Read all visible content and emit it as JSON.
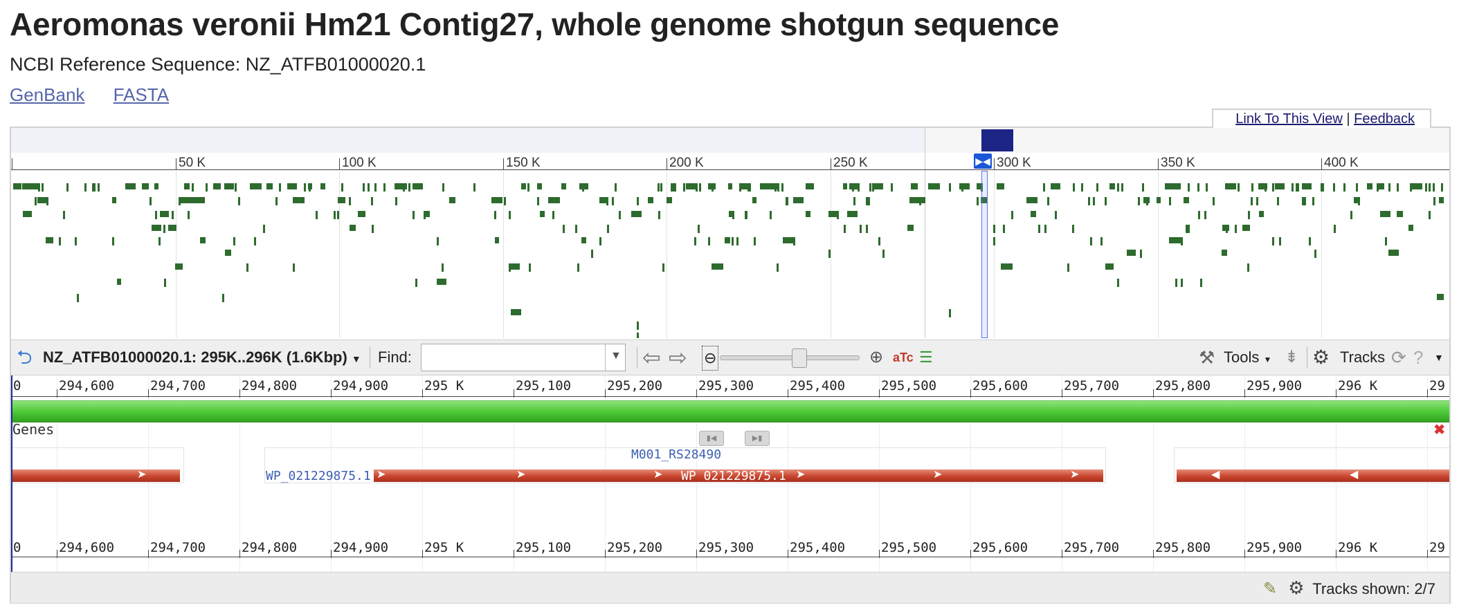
{
  "page": {
    "title": "Aeromonas veronii Hm21 Contig27, whole genome shotgun sequence",
    "subtitle": "NCBI Reference Sequence: NZ_ATFB01000020.1",
    "links": [
      "GenBank",
      "FASTA"
    ]
  },
  "viewer": {
    "link_to_view": "Link To This View",
    "separator": "|",
    "feedback": "Feedback",
    "overview": {
      "ticks": [
        "50 K",
        "100 K",
        "150 K",
        "200 K",
        "250 K",
        "300 K",
        "350 K",
        "400 K"
      ]
    },
    "toolbar": {
      "location": "NZ_ATFB01000020.1: 295K..296K (1.6Kbp)",
      "find_label": "Find:",
      "find_value": "",
      "tools_label": "Tools",
      "tracks_label": "Tracks"
    },
    "detail": {
      "ticks": [
        "0",
        "294,600",
        "294,700",
        "294,800",
        "294,900",
        "295 K",
        "295,100",
        "295,200",
        "295,300",
        "295,400",
        "295,500",
        "295,600",
        "295,700",
        "295,800",
        "295,900",
        "296 K",
        "29"
      ],
      "genes_track": "Genes",
      "gene_name": "M001_RS28490",
      "protein_left": "WP_021229875.1",
      "protein_mid": "WP_021229875.1"
    },
    "status": {
      "tracks_shown": "Tracks shown: 2/7"
    }
  },
  "colors": {
    "link": "#5566aa",
    "gene_overview": "#2e6b2e",
    "feature": "#c8452e",
    "sequence_bar": "#4fcb3a",
    "selection": "#1a57d8"
  }
}
